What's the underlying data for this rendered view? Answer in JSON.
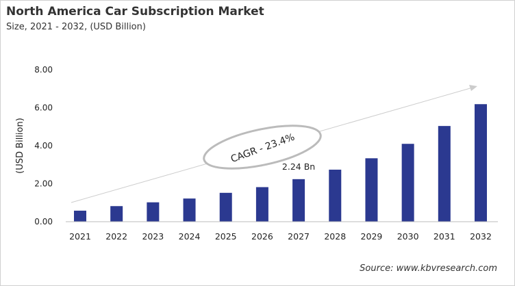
{
  "chart_data": {
    "type": "bar",
    "title": "North America Car Subscription Market",
    "subtitle": "Size, 2021 - 2032, (USD Billion)",
    "xlabel": "",
    "ylabel": "(USD Billion)",
    "ylim": [
      0,
      8
    ],
    "yticks": [
      "0.00",
      "2.00",
      "4.00",
      "6.00",
      "8.00"
    ],
    "categories": [
      "2021",
      "2022",
      "2023",
      "2024",
      "2025",
      "2026",
      "2027",
      "2028",
      "2029",
      "2030",
      "2031",
      "2032"
    ],
    "values": [
      0.58,
      0.82,
      1.02,
      1.22,
      1.52,
      1.82,
      2.24,
      2.74,
      3.34,
      4.1,
      5.04,
      6.19
    ],
    "data_label": {
      "category": "2027",
      "text": "2.24 Bn"
    },
    "annotation": "CAGR - 23.4%",
    "grid": false,
    "bar_color": "#2b3990",
    "source": "Source: www.kbvresearch.com"
  }
}
